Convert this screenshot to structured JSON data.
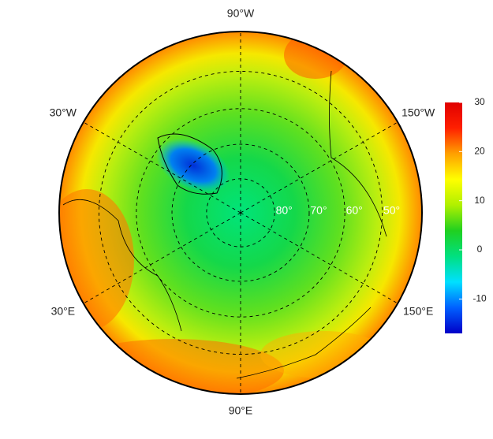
{
  "map": {
    "type": "polar",
    "lat_lim": 40,
    "longitude_labels": [
      {
        "value": -90,
        "label": "90°W"
      },
      {
        "value": -30,
        "label": "30°W"
      },
      {
        "value": -150,
        "label": "150°W"
      },
      {
        "value": 30,
        "label": "30°E"
      },
      {
        "value": 150,
        "label": "150°E"
      },
      {
        "value": 90,
        "label": "90°E"
      }
    ],
    "latitude_labels": [
      {
        "value": 80,
        "label": "80°"
      },
      {
        "value": 70,
        "label": "70°"
      },
      {
        "value": 60,
        "label": "60°"
      },
      {
        "value": 50,
        "label": "50°"
      }
    ]
  },
  "colorbar": {
    "lim": [
      -17,
      30
    ],
    "ticks": [
      -10,
      0,
      10,
      20,
      30
    ],
    "colors": [
      "#0000c8",
      "#0060ff",
      "#00e0ff",
      "#00e080",
      "#20d020",
      "#b0f000",
      "#ffff00",
      "#ffa000",
      "#ff2000",
      "#e00000"
    ]
  }
}
